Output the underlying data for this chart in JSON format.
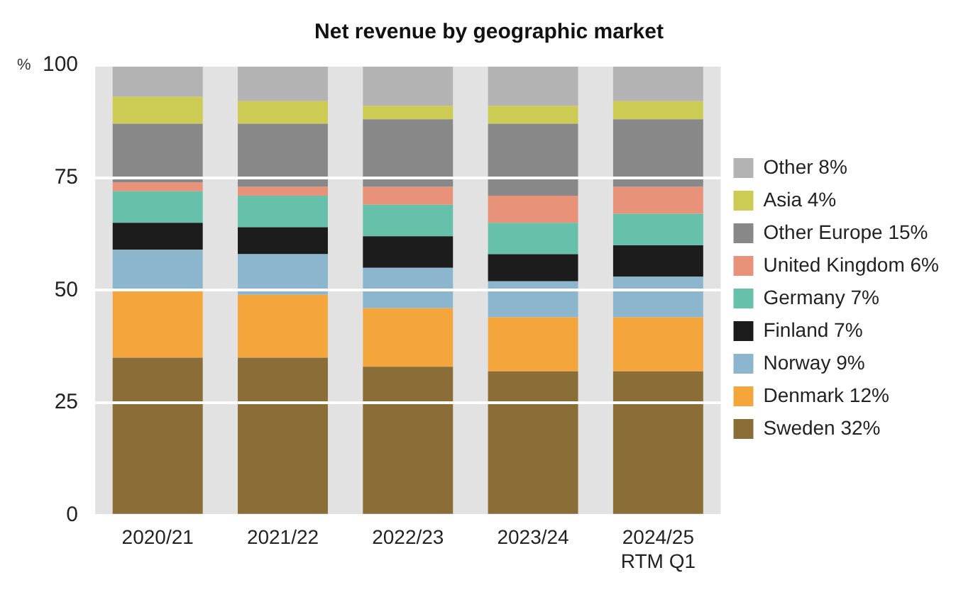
{
  "chart_data": {
    "type": "bar",
    "title": "Net revenue by geographic market",
    "ylabel": "%",
    "stacked": true,
    "categories": [
      "2020/21",
      "2021/22",
      "2022/23",
      "2023/24",
      "2024/25\nRTM Q1"
    ],
    "series": [
      {
        "name": "Sweden 32%",
        "color": "#8b6d38",
        "values": [
          35,
          35,
          33,
          32,
          32
        ]
      },
      {
        "name": "Denmark 12%",
        "color": "#f4a63c",
        "values": [
          15,
          14,
          13,
          12,
          12
        ]
      },
      {
        "name": "Norway 9%",
        "color": "#8bb6cd",
        "values": [
          9,
          9,
          9,
          8,
          9
        ]
      },
      {
        "name": "Finland 7%",
        "color": "#1c1c1c",
        "values": [
          6,
          6,
          7,
          6,
          7
        ]
      },
      {
        "name": "Germany 7%",
        "color": "#66c0aa",
        "values": [
          7,
          7,
          7,
          7,
          7
        ]
      },
      {
        "name": "United Kingdom 6%",
        "color": "#e8927a",
        "values": [
          2,
          2,
          4,
          6,
          6
        ]
      },
      {
        "name": "Other Europe 15%",
        "color": "#888888",
        "values": [
          13,
          14,
          15,
          16,
          15
        ]
      },
      {
        "name": "Asia 4%",
        "color": "#cccc55",
        "values": [
          6,
          5,
          3,
          4,
          4
        ]
      },
      {
        "name": "Other 8%",
        "color": "#b3b3b3",
        "values": [
          7,
          8,
          9,
          9,
          8
        ]
      }
    ],
    "ylim": [
      0,
      100
    ],
    "yticks": [
      0,
      25,
      50,
      75,
      100
    ],
    "grid": "y",
    "legend": "right"
  }
}
